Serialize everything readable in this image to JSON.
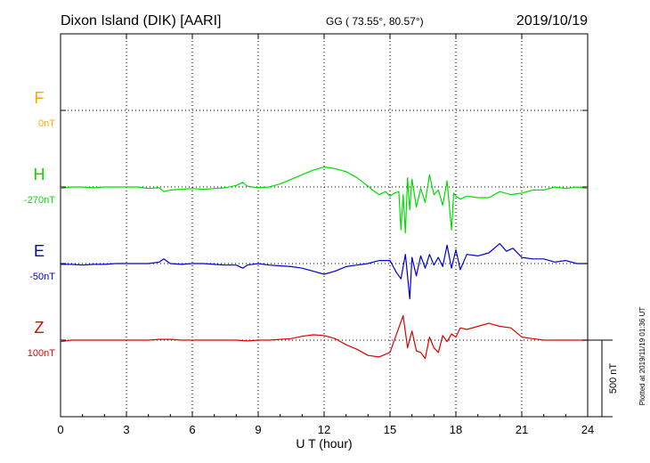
{
  "header": {
    "station": "Dixon Island (DIK)  [AARI]",
    "coords": "GG ( 73.55°,  80.57°)",
    "date": "2019/10/19"
  },
  "footer": {
    "plotted": "Plotted at 2019/11/19 01:36 UT"
  },
  "colors": {
    "F": "#ffa500",
    "H": "#00dd00",
    "E": "#0000cc",
    "Z": "#dd0000",
    "axis": "#000000"
  },
  "chart_data": {
    "type": "line",
    "xlabel": "U T (hour)",
    "xlim": [
      0,
      24
    ],
    "xticks": [
      0,
      3,
      6,
      9,
      12,
      15,
      18,
      21,
      24
    ],
    "xtick_labels": [
      "0",
      "3",
      "6",
      "9",
      "12",
      "15",
      "18",
      "21",
      "24"
    ],
    "scale_bar": "500 nT",
    "scale_nT": 500,
    "series": [
      {
        "name": "F",
        "baseline_label": "0nT",
        "values": []
      },
      {
        "name": "H",
        "baseline_label": "-270nT",
        "x": [
          0,
          0.5,
          1,
          1.5,
          2,
          2.5,
          3,
          3.5,
          4,
          4.5,
          4.7,
          5,
          5.5,
          6,
          6.5,
          7,
          7.5,
          8,
          8.3,
          8.5,
          9,
          9.5,
          10,
          10.5,
          11,
          11.5,
          12,
          12.5,
          13,
          13.5,
          14,
          14.2,
          14.5,
          14.8,
          15,
          15.2,
          15.4,
          15.5,
          15.6,
          15.7,
          15.8,
          15.9,
          16,
          16.2,
          16.4,
          16.6,
          16.8,
          17,
          17.2,
          17.4,
          17.6,
          17.8,
          17.9,
          18,
          18.2,
          18.5,
          19,
          19.5,
          20,
          20.5,
          21,
          21.5,
          22,
          22.5,
          23,
          23.5,
          24
        ],
        "values": [
          -10,
          0,
          0,
          -5,
          0,
          0,
          0,
          0,
          -10,
          -5,
          -30,
          -20,
          -15,
          -10,
          -15,
          -10,
          -5,
          10,
          30,
          5,
          -5,
          0,
          20,
          50,
          80,
          110,
          130,
          120,
          100,
          60,
          5,
          -20,
          -50,
          -30,
          -60,
          -40,
          -30,
          -280,
          -50,
          -300,
          60,
          -150,
          50,
          -130,
          -10,
          -100,
          80,
          -50,
          -20,
          -120,
          40,
          -280,
          -40,
          -60,
          -80,
          -60,
          -70,
          -70,
          -30,
          -50,
          -40,
          -20,
          -20,
          0,
          -10,
          0,
          -10
        ]
      },
      {
        "name": "E",
        "baseline_label": "-50nT",
        "x": [
          0,
          0.5,
          1,
          1.5,
          2,
          2.5,
          3,
          3.5,
          4,
          4.5,
          4.7,
          5,
          5.5,
          6,
          6.5,
          7,
          7.5,
          8,
          8.3,
          8.5,
          9,
          9.5,
          10,
          10.5,
          11,
          11.5,
          12,
          12.5,
          13,
          13.5,
          14,
          14.5,
          15,
          15.3,
          15.5,
          15.7,
          15.9,
          16,
          16.2,
          16.4,
          16.6,
          16.8,
          17,
          17.2,
          17.4,
          17.6,
          17.8,
          18,
          18.2,
          18.5,
          19,
          19.5,
          20,
          20.3,
          20.6,
          21,
          21.5,
          22,
          22.5,
          23,
          23.5,
          24
        ],
        "values": [
          -5,
          -5,
          -10,
          -5,
          -5,
          0,
          0,
          0,
          0,
          10,
          30,
          0,
          -5,
          0,
          0,
          -5,
          -10,
          -10,
          -30,
          -10,
          0,
          -10,
          -15,
          -20,
          -30,
          -50,
          -70,
          -50,
          -20,
          -10,
          0,
          20,
          20,
          -60,
          -100,
          60,
          -230,
          40,
          -80,
          50,
          -30,
          60,
          -10,
          40,
          -20,
          120,
          -30,
          90,
          -40,
          60,
          50,
          70,
          130,
          80,
          100,
          40,
          30,
          30,
          10,
          20,
          0,
          0
        ]
      },
      {
        "name": "Z",
        "baseline_label": "100nT",
        "x": [
          0,
          0.5,
          1,
          1.5,
          2,
          2.5,
          3,
          3.5,
          4,
          4.5,
          5,
          5.5,
          6,
          6.5,
          7,
          7.5,
          8,
          8.5,
          9,
          9.5,
          10,
          10.5,
          11,
          11.5,
          12,
          12.5,
          13,
          13.5,
          14,
          14.5,
          15,
          15.3,
          15.6,
          15.8,
          16,
          16.2,
          16.4,
          16.6,
          16.8,
          17,
          17.2,
          17.4,
          17.6,
          17.8,
          18,
          18.2,
          18.5,
          19,
          19.5,
          20,
          20.5,
          21,
          21.5,
          22,
          22.5,
          23,
          23.5,
          24
        ],
        "values": [
          -10,
          0,
          0,
          0,
          0,
          0,
          0,
          0,
          0,
          5,
          5,
          0,
          0,
          0,
          0,
          0,
          0,
          -5,
          0,
          0,
          5,
          10,
          25,
          35,
          30,
          10,
          -30,
          -60,
          -100,
          -110,
          -80,
          40,
          160,
          -50,
          60,
          -70,
          -80,
          -120,
          20,
          -50,
          -80,
          30,
          -10,
          40,
          20,
          80,
          70,
          90,
          110,
          90,
          80,
          20,
          10,
          0,
          0,
          0,
          0,
          0
        ]
      }
    ]
  }
}
